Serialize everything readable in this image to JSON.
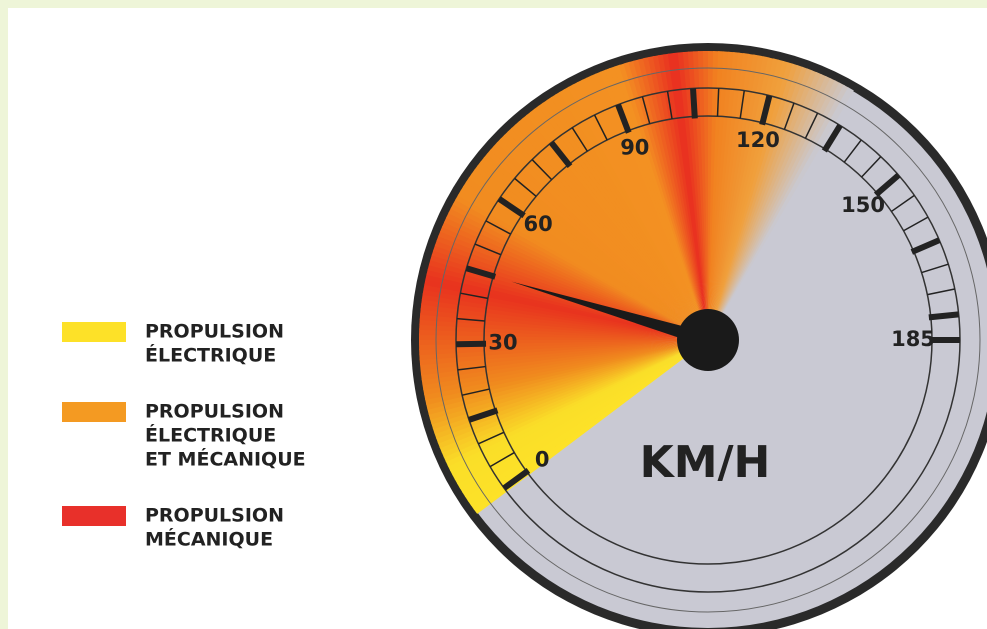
{
  "legend": [
    {
      "color": "#fde128",
      "lines": [
        "PROPULSION",
        "ÉLECTRIQUE"
      ]
    },
    {
      "color": "#f49a22",
      "lines": [
        "PROPULSION",
        "ÉLECTRIQUE",
        "ET MÉCANIQUE"
      ]
    },
    {
      "color": "#e8302a",
      "lines": [
        "PROPULSION",
        "MÉCANIQUE"
      ]
    }
  ],
  "gauge": {
    "unit": "KM/H",
    "scale_labels": [
      0,
      30,
      60,
      90,
      120,
      150,
      185
    ],
    "needle_value": 45
  }
}
